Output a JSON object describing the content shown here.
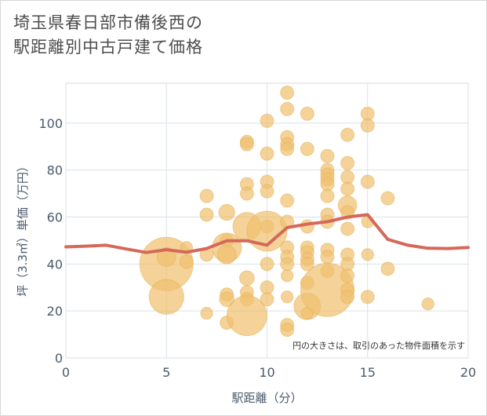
{
  "title_lines": [
    "埼玉県春日部市備後西の",
    "駅距離別中古戸建て価格"
  ],
  "chart_data": {
    "type": "scatter",
    "title": "埼玉県春日部市備後西の駅距離別中古戸建て価格",
    "xlabel": "駅距離（分）",
    "ylabel": "坪（3.3㎡）単価（万円）",
    "xlim": [
      0,
      20
    ],
    "ylim": [
      0,
      117
    ],
    "x_ticks": [
      0,
      5,
      10,
      15,
      20
    ],
    "y_ticks": [
      0,
      20,
      40,
      60,
      80,
      100
    ],
    "grid": true,
    "note": "円の大きさは、取引のあった物件面積を示す",
    "colors": {
      "bubble": "#f0c070",
      "bubble_stroke": "#e4ad52",
      "trend": "#d4695a"
    },
    "bubbles": [
      {
        "x": 5,
        "y": 40,
        "s": 4.0
      },
      {
        "x": 5,
        "y": 26,
        "s": 2.6
      },
      {
        "x": 5,
        "y": 43,
        "s": 1.4
      },
      {
        "x": 6,
        "y": 47,
        "s": 0.9
      },
      {
        "x": 6,
        "y": 41,
        "s": 1.0
      },
      {
        "x": 7,
        "y": 69,
        "s": 1.0
      },
      {
        "x": 7,
        "y": 61,
        "s": 1.0
      },
      {
        "x": 7,
        "y": 44,
        "s": 1.0
      },
      {
        "x": 7,
        "y": 19,
        "s": 0.9
      },
      {
        "x": 8,
        "y": 62,
        "s": 1.2
      },
      {
        "x": 8,
        "y": 50,
        "s": 1.0
      },
      {
        "x": 8,
        "y": 47,
        "s": 2.2
      },
      {
        "x": 8,
        "y": 44,
        "s": 1.4
      },
      {
        "x": 8,
        "y": 27,
        "s": 1.0
      },
      {
        "x": 8,
        "y": 25,
        "s": 1.1
      },
      {
        "x": 8,
        "y": 15,
        "s": 1.0
      },
      {
        "x": 9,
        "y": 92,
        "s": 1.0
      },
      {
        "x": 9,
        "y": 91,
        "s": 1.0
      },
      {
        "x": 9,
        "y": 74,
        "s": 1.0
      },
      {
        "x": 9,
        "y": 70,
        "s": 1.0
      },
      {
        "x": 9,
        "y": 56,
        "s": 2.1
      },
      {
        "x": 9,
        "y": 34,
        "s": 1.1
      },
      {
        "x": 9,
        "y": 28,
        "s": 1.0
      },
      {
        "x": 9,
        "y": 25,
        "s": 1.0
      },
      {
        "x": 9,
        "y": 18,
        "s": 3.0
      },
      {
        "x": 10,
        "y": 101,
        "s": 1.0
      },
      {
        "x": 10,
        "y": 87,
        "s": 1.0
      },
      {
        "x": 10,
        "y": 75,
        "s": 1.0
      },
      {
        "x": 10,
        "y": 71,
        "s": 1.0
      },
      {
        "x": 10,
        "y": 56,
        "s": 1.0
      },
      {
        "x": 10,
        "y": 54,
        "s": 3.0
      },
      {
        "x": 10,
        "y": 40,
        "s": 1.0
      },
      {
        "x": 10,
        "y": 30,
        "s": 1.0
      },
      {
        "x": 10,
        "y": 25,
        "s": 1.0
      },
      {
        "x": 11,
        "y": 113,
        "s": 1.0
      },
      {
        "x": 11,
        "y": 106,
        "s": 1.0
      },
      {
        "x": 11,
        "y": 94,
        "s": 1.0
      },
      {
        "x": 11,
        "y": 91,
        "s": 1.0
      },
      {
        "x": 11,
        "y": 89,
        "s": 1.0
      },
      {
        "x": 11,
        "y": 67,
        "s": 1.0
      },
      {
        "x": 11,
        "y": 58,
        "s": 1.0
      },
      {
        "x": 11,
        "y": 47,
        "s": 1.0
      },
      {
        "x": 11,
        "y": 43,
        "s": 1.0
      },
      {
        "x": 11,
        "y": 40,
        "s": 1.0
      },
      {
        "x": 11,
        "y": 35,
        "s": 0.9
      },
      {
        "x": 11,
        "y": 26,
        "s": 0.9
      },
      {
        "x": 11,
        "y": 14,
        "s": 1.0
      },
      {
        "x": 11,
        "y": 12,
        "s": 1.0
      },
      {
        "x": 12,
        "y": 104,
        "s": 1.0
      },
      {
        "x": 12,
        "y": 89,
        "s": 1.0
      },
      {
        "x": 12,
        "y": 56,
        "s": 1.0
      },
      {
        "x": 12,
        "y": 47,
        "s": 1.0
      },
      {
        "x": 12,
        "y": 45,
        "s": 1.0
      },
      {
        "x": 12,
        "y": 42,
        "s": 1.0
      },
      {
        "x": 12,
        "y": 40,
        "s": 1.0
      },
      {
        "x": 12,
        "y": 32,
        "s": 1.0
      },
      {
        "x": 12,
        "y": 22,
        "s": 2.0
      },
      {
        "x": 12,
        "y": 19,
        "s": 0.9
      },
      {
        "x": 13,
        "y": 86,
        "s": 1.0
      },
      {
        "x": 13,
        "y": 80,
        "s": 1.0
      },
      {
        "x": 13,
        "y": 78,
        "s": 1.0
      },
      {
        "x": 13,
        "y": 76,
        "s": 1.0
      },
      {
        "x": 13,
        "y": 74,
        "s": 1.0
      },
      {
        "x": 13,
        "y": 69,
        "s": 1.0
      },
      {
        "x": 13,
        "y": 61,
        "s": 1.0
      },
      {
        "x": 13,
        "y": 58,
        "s": 1.0
      },
      {
        "x": 13,
        "y": 46,
        "s": 1.0
      },
      {
        "x": 13,
        "y": 43,
        "s": 1.0
      },
      {
        "x": 13,
        "y": 37,
        "s": 1.0
      },
      {
        "x": 13,
        "y": 29,
        "s": 4.0
      },
      {
        "x": 14,
        "y": 95,
        "s": 1.0
      },
      {
        "x": 14,
        "y": 83,
        "s": 1.0
      },
      {
        "x": 14,
        "y": 77,
        "s": 1.0
      },
      {
        "x": 14,
        "y": 72,
        "s": 1.0
      },
      {
        "x": 14,
        "y": 65,
        "s": 1.4
      },
      {
        "x": 14,
        "y": 62,
        "s": 1.0
      },
      {
        "x": 14,
        "y": 55,
        "s": 1.0
      },
      {
        "x": 14,
        "y": 44,
        "s": 1.0
      },
      {
        "x": 14,
        "y": 40,
        "s": 1.0
      },
      {
        "x": 14,
        "y": 35,
        "s": 1.0
      },
      {
        "x": 14,
        "y": 29,
        "s": 1.0
      },
      {
        "x": 14,
        "y": 26,
        "s": 1.0
      },
      {
        "x": 15,
        "y": 104,
        "s": 1.0
      },
      {
        "x": 15,
        "y": 99,
        "s": 1.0
      },
      {
        "x": 15,
        "y": 75,
        "s": 1.0
      },
      {
        "x": 15,
        "y": 58,
        "s": 0.9
      },
      {
        "x": 15,
        "y": 44,
        "s": 0.9
      },
      {
        "x": 15,
        "y": 26,
        "s": 1.0
      },
      {
        "x": 16,
        "y": 68,
        "s": 1.0
      },
      {
        "x": 16,
        "y": 38,
        "s": 1.0
      },
      {
        "x": 18,
        "y": 23,
        "s": 0.9
      }
    ],
    "trend": {
      "x": [
        0,
        1,
        2,
        3,
        4,
        5,
        6,
        7,
        8,
        9,
        10,
        11,
        12,
        13,
        14,
        15,
        16,
        17,
        18,
        19,
        20
      ],
      "y": [
        47.3,
        47.6,
        48,
        46.4,
        44.9,
        46.1,
        45,
        46.6,
        49.9,
        49.9,
        48,
        55.5,
        57,
        58,
        60,
        61,
        50.5,
        48,
        46.7,
        46.6,
        47
      ]
    }
  }
}
